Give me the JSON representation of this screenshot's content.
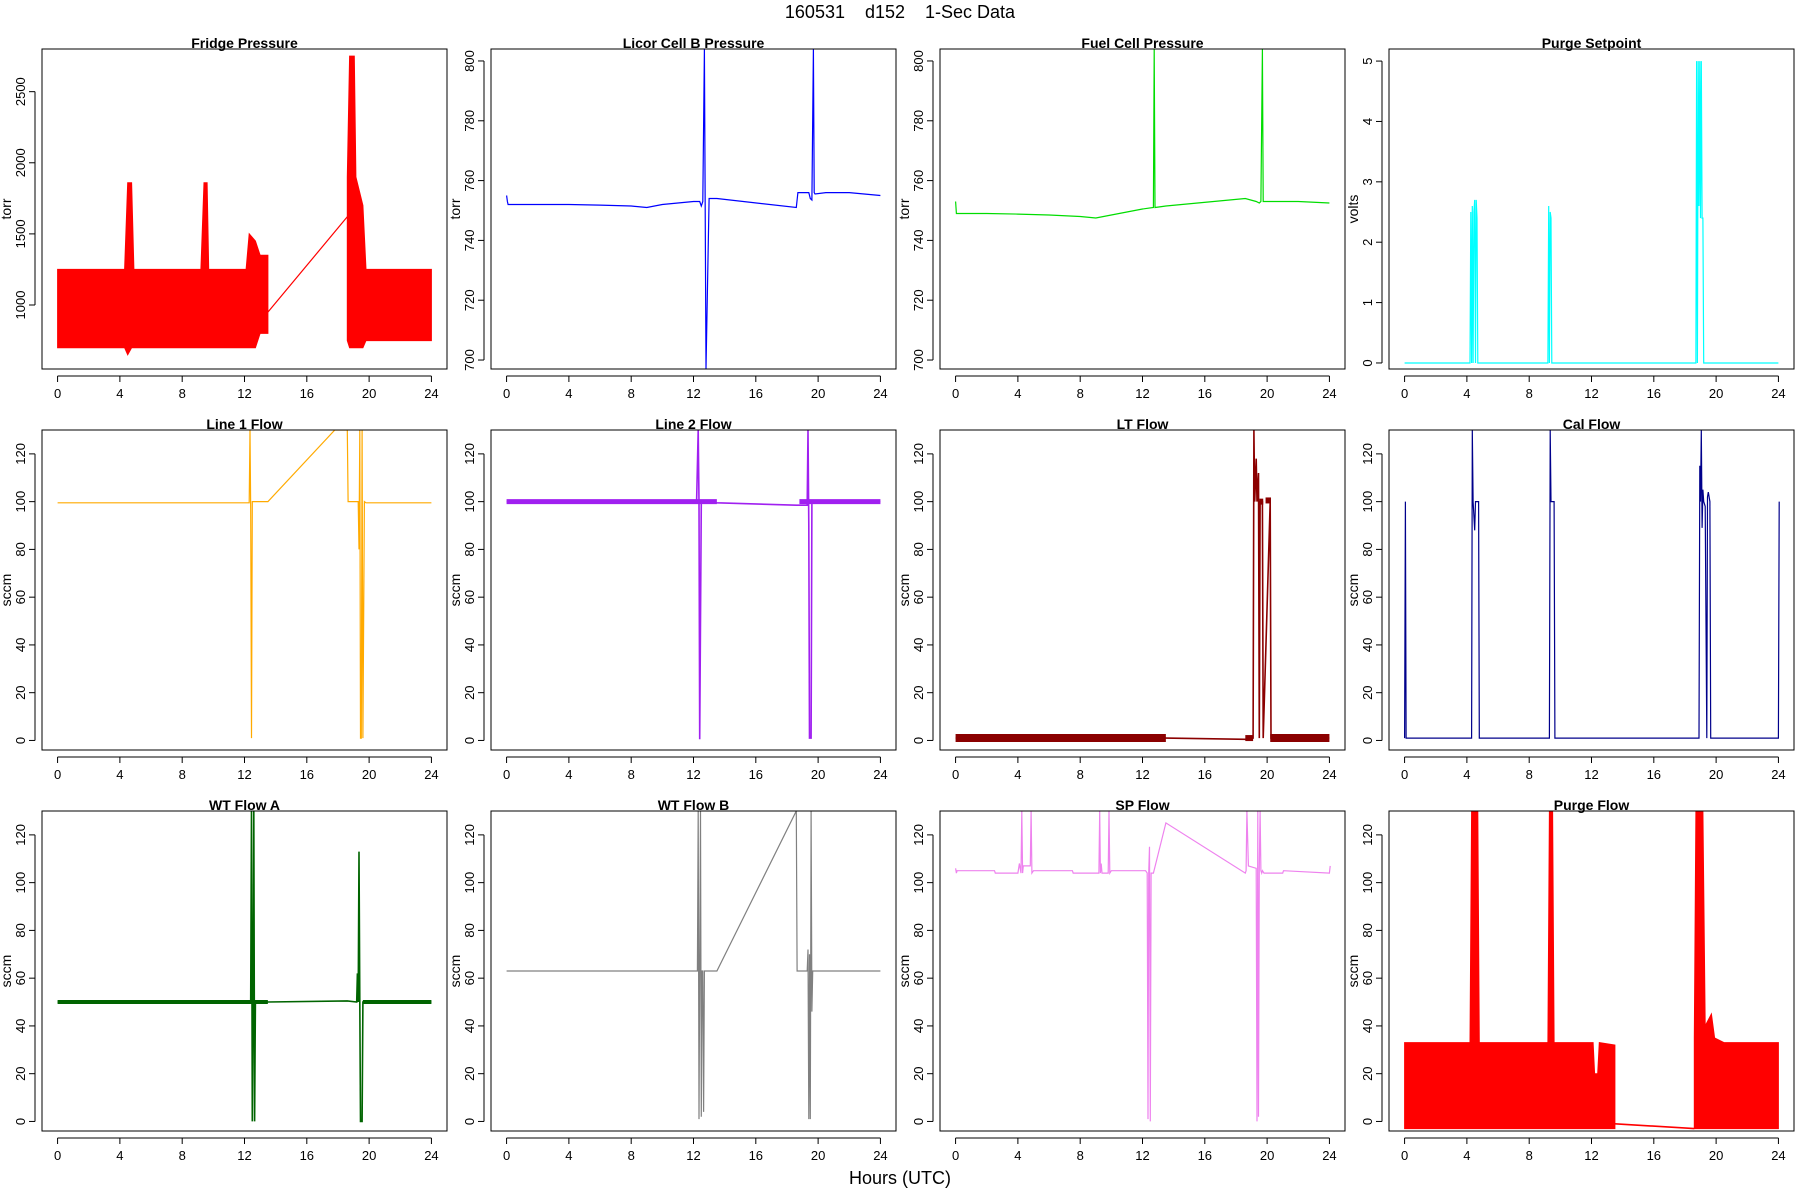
{
  "page": {
    "title": "160531    d152    1-Sec Data",
    "xlabel": "Hours (UTC)"
  },
  "chart_data": [
    {
      "type": "line",
      "title": "Fridge Pressure",
      "ylabel": "torr",
      "color": "#ff0000",
      "xlim": [
        -1,
        25
      ],
      "ylim": [
        550,
        2800
      ],
      "xticks": [
        0,
        4,
        8,
        12,
        16,
        20,
        24
      ],
      "yticks": [
        1000,
        1500,
        2000,
        2500
      ],
      "series": [
        {
          "envelope": [
            [
              0,
              700,
              1250
            ],
            [
              4.3,
              700,
              1250
            ],
            [
              4.5,
              650,
              1860
            ],
            [
              4.75,
              700,
              1860
            ],
            [
              4.9,
              700,
              1250
            ],
            [
              9.2,
              700,
              1250
            ],
            [
              9.4,
              700,
              1860
            ],
            [
              9.6,
              700,
              1860
            ],
            [
              9.7,
              700,
              1250
            ],
            [
              12.1,
              700,
              1250
            ],
            [
              12.3,
              700,
              1500
            ],
            [
              12.7,
              700,
              1450
            ],
            [
              13.0,
              800,
              1350
            ],
            [
              13.5,
              800,
              1350
            ]
          ],
          "x": [
            13.5,
            18.6
          ],
          "y": [
            950,
            1620
          ],
          "envelope2": [
            [
              18.6,
              750,
              1900
            ],
            [
              18.75,
              700,
              2750
            ],
            [
              19.05,
              700,
              2750
            ],
            [
              19.15,
              700,
              1900
            ],
            [
              19.6,
              700,
              1700
            ],
            [
              19.8,
              750,
              1250
            ],
            [
              24,
              750,
              1250
            ]
          ]
        }
      ]
    },
    {
      "type": "line",
      "title": "Licor Cell B Pressure",
      "ylabel": "torr",
      "color": "#0000ff",
      "xlim": [
        -1,
        25
      ],
      "ylim": [
        697,
        804
      ],
      "xticks": [
        0,
        4,
        8,
        12,
        16,
        20,
        24
      ],
      "yticks": [
        700,
        720,
        740,
        760,
        780,
        800
      ],
      "series": [
        {
          "x": [
            0,
            0.05,
            0.1,
            2,
            4,
            6,
            8,
            9,
            10,
            11,
            12,
            12.4,
            12.5,
            12.6,
            12.7,
            12.8,
            13.0,
            13.5,
            18.6,
            18.7,
            19.4,
            19.5,
            19.6,
            19.7,
            19.75,
            19.8,
            20.5,
            22,
            24
          ],
          "y": [
            755,
            753,
            752,
            752,
            752,
            751.8,
            751.5,
            751,
            752,
            752.5,
            753,
            753,
            751.5,
            753,
            804,
            697,
            754,
            754,
            751,
            756,
            756,
            754,
            753.5,
            804,
            756,
            755.5,
            756,
            756,
            755
          ]
        }
      ]
    },
    {
      "type": "line",
      "title": "Fuel Cell Pressure",
      "ylabel": "torr",
      "color": "#00dd00",
      "xlim": [
        -1,
        25
      ],
      "ylim": [
        697,
        804
      ],
      "xticks": [
        0,
        4,
        8,
        12,
        16,
        20,
        24
      ],
      "yticks": [
        700,
        720,
        740,
        760,
        780,
        800
      ],
      "series": [
        {
          "x": [
            0,
            0.05,
            0.1,
            2,
            4,
            6,
            8,
            9,
            10,
            11,
            12,
            12.7,
            12.75,
            12.8,
            13.5,
            18.6,
            19.3,
            19.5,
            19.6,
            19.7,
            19.75,
            20,
            22,
            24
          ],
          "y": [
            753,
            749,
            749,
            749,
            748.8,
            748.5,
            748,
            747.5,
            748.5,
            749.5,
            750.5,
            751,
            804,
            751,
            751.5,
            754,
            753,
            752.5,
            753,
            804,
            753,
            753,
            753,
            752.5
          ]
        }
      ]
    },
    {
      "type": "line",
      "title": "Purge Setpoint",
      "ylabel": "volts",
      "color": "#00ffff",
      "xlim": [
        -1,
        25
      ],
      "ylim": [
        -0.1,
        5.2
      ],
      "xticks": [
        0,
        4,
        8,
        12,
        16,
        20,
        24
      ],
      "yticks": [
        0,
        1,
        2,
        3,
        4,
        5
      ],
      "series": [
        {
          "x": [
            0,
            4.2,
            4.25,
            4.3,
            4.35,
            4.4,
            4.45,
            4.5,
            4.55,
            4.6,
            4.65,
            4.7,
            9.2,
            9.25,
            9.3,
            9.35,
            9.4,
            9.45,
            9.5,
            18.7,
            18.75,
            18.8,
            18.85,
            18.9,
            18.95,
            19.0,
            19.05,
            19.1,
            19.15,
            19.2,
            24
          ],
          "y": [
            0,
            0,
            2.5,
            0,
            2.6,
            0,
            2.5,
            2.7,
            0,
            2.7,
            2.4,
            0,
            0,
            2.6,
            0,
            2.5,
            2.4,
            0,
            0,
            0,
            5.0,
            0,
            5.0,
            2.6,
            5.0,
            2.4,
            5.0,
            2.4,
            2.4,
            0,
            0
          ]
        }
      ]
    },
    {
      "type": "line",
      "title": "Line 1 Flow",
      "ylabel": "sccm",
      "color": "#ffaa00",
      "xlim": [
        -1,
        25
      ],
      "ylim": [
        -4,
        130
      ],
      "xticks": [
        0,
        4,
        8,
        12,
        16,
        20,
        24
      ],
      "yticks": [
        0,
        20,
        40,
        60,
        80,
        100,
        120
      ],
      "series": [
        {
          "x": [
            0,
            12.3,
            12.35,
            12.4,
            12.45,
            12.5,
            12.6,
            13.5,
            17.8,
            18.6,
            18.65,
            19.3,
            19.35,
            19.4,
            19.45,
            19.5,
            19.55,
            19.6,
            19.7,
            19.8,
            24
          ],
          "y": [
            99.5,
            99.5,
            130,
            96,
            1,
            100,
            100,
            100,
            130,
            130,
            100,
            100,
            80,
            130,
            1,
            1,
            130,
            1,
            100,
            99.5,
            99.5
          ]
        }
      ]
    },
    {
      "type": "line",
      "title": "Line 2 Flow",
      "ylabel": "sccm",
      "color": "#a020f0",
      "xlim": [
        -1,
        25
      ],
      "ylim": [
        -4,
        130
      ],
      "xticks": [
        0,
        4,
        8,
        12,
        16,
        20,
        24
      ],
      "yticks": [
        0,
        20,
        40,
        60,
        80,
        100,
        120
      ],
      "series": [
        {
          "x": [
            0,
            12.2,
            12.3,
            12.35,
            12.4,
            12.5,
            13.5,
            18.6,
            19.3,
            19.35,
            19.4,
            19.45,
            19.55,
            19.6,
            19.7,
            24
          ],
          "y": [
            100,
            100,
            130,
            100,
            0.5,
            100,
            99.5,
            98.5,
            98.5,
            130,
            90,
            1,
            1,
            100,
            100,
            100
          ]
        }
      ]
    },
    {
      "type": "line",
      "title": "LT Flow",
      "ylabel": "sccm",
      "color": "#8b0000",
      "xlim": [
        -1,
        25
      ],
      "ylim": [
        -4,
        130
      ],
      "xticks": [
        0,
        4,
        8,
        12,
        16,
        20,
        24
      ],
      "yticks": [
        0,
        20,
        40,
        60,
        80,
        100,
        120
      ],
      "series": [
        {
          "x": [
            0,
            13.5,
            18.6,
            19.1,
            19.15,
            19.2,
            19.3,
            19.35,
            19.45,
            19.5,
            19.55,
            19.7,
            19.75,
            20.2,
            20.25,
            24
          ],
          "y": [
            1,
            1,
            0.5,
            1,
            130,
            100,
            118,
            100,
            112,
            1,
            100,
            100,
            1,
            100,
            1,
            1
          ]
        }
      ]
    },
    {
      "type": "line",
      "title": "Cal Flow",
      "ylabel": "sccm",
      "color": "#00008b",
      "xlim": [
        -1,
        25
      ],
      "ylim": [
        -4,
        130
      ],
      "xticks": [
        0,
        4,
        8,
        12,
        16,
        20,
        24
      ],
      "yticks": [
        0,
        20,
        40,
        60,
        80,
        100,
        120
      ],
      "series": [
        {
          "x": [
            0,
            0.05,
            0.1,
            4.3,
            4.35,
            4.4,
            4.5,
            4.55,
            4.75,
            4.8,
            9.3,
            9.35,
            9.4,
            9.6,
            9.65,
            18.9,
            18.95,
            19.0,
            19.05,
            19.1,
            19.15,
            19.2,
            19.3,
            19.4,
            19.45,
            19.5,
            19.6,
            19.65,
            19.7,
            19.75,
            24,
            24.05
          ],
          "y": [
            1,
            100,
            1,
            1,
            130,
            100,
            88,
            100,
            100,
            1,
            1,
            130,
            100,
            100,
            1,
            1,
            115,
            100,
            130,
            89,
            105,
            100,
            98,
            1,
            102,
            104,
            100,
            1,
            1,
            1,
            1,
            100
          ]
        }
      ]
    },
    {
      "type": "line",
      "title": "WT Flow A",
      "ylabel": "sccm",
      "color": "#006400",
      "xlim": [
        -1,
        25
      ],
      "ylim": [
        -4,
        130
      ],
      "xticks": [
        0,
        4,
        8,
        12,
        16,
        20,
        24
      ],
      "yticks": [
        0,
        20,
        40,
        60,
        80,
        100,
        120
      ],
      "series": [
        {
          "x": [
            0,
            12.3,
            12.4,
            12.45,
            12.5,
            12.55,
            12.6,
            12.65,
            12.7,
            12.75,
            13.5,
            18.6,
            19.2,
            19.25,
            19.3,
            19.35,
            19.4,
            19.45,
            19.55,
            19.6,
            19.65,
            24
          ],
          "y": [
            50,
            50,
            50,
            130,
            0,
            50,
            130,
            0,
            50,
            50,
            50,
            50.5,
            50,
            62,
            50,
            113,
            50,
            0,
            0,
            50,
            50,
            50
          ]
        }
      ]
    },
    {
      "type": "line",
      "title": "WT Flow B",
      "ylabel": "sccm",
      "color": "#808080",
      "xlim": [
        -1,
        25
      ],
      "ylim": [
        -4,
        130
      ],
      "xticks": [
        0,
        4,
        8,
        12,
        16,
        20,
        24
      ],
      "yticks": [
        0,
        20,
        40,
        60,
        80,
        100,
        120
      ],
      "series": [
        {
          "x": [
            0,
            12.2,
            12.25,
            12.3,
            12.35,
            12.4,
            12.45,
            12.5,
            12.55,
            12.6,
            12.65,
            12.7,
            13.5,
            18.6,
            18.65,
            19.3,
            19.35,
            19.4,
            19.45,
            19.5,
            19.55,
            19.6,
            19.65,
            19.7,
            20,
            24
          ],
          "y": [
            63,
            63,
            63,
            130,
            1,
            63,
            130,
            2,
            63,
            63,
            4,
            63,
            63,
            130,
            63,
            63,
            72,
            1,
            70,
            1,
            130,
            46,
            63,
            63,
            63,
            63
          ]
        }
      ]
    },
    {
      "type": "line",
      "title": "SP Flow",
      "ylabel": "sccm",
      "color": "#ee82ee",
      "xlim": [
        -1,
        25
      ],
      "ylim": [
        -4,
        130
      ],
      "xticks": [
        0,
        4,
        8,
        12,
        16,
        20,
        24
      ],
      "yticks": [
        0,
        20,
        40,
        60,
        80,
        100,
        120
      ],
      "series": [
        {
          "x": [
            0,
            0.05,
            0.1,
            2.5,
            2.55,
            3.5,
            4.0,
            4.1,
            4.2,
            4.25,
            4.3,
            4.35,
            4.8,
            4.85,
            4.9,
            5.0,
            7.5,
            7.55,
            9.2,
            9.25,
            9.3,
            9.35,
            9.4,
            9.8,
            9.85,
            9.9,
            10.0,
            12.2,
            12.3,
            12.35,
            12.4,
            12.45,
            12.5,
            12.55,
            12.6,
            12.7,
            13.5,
            18.6,
            18.65,
            18.7,
            18.8,
            19.3,
            19.35,
            19.4,
            19.45,
            19.5,
            19.55,
            19.6,
            19.65,
            19.7,
            19.8,
            21,
            21.05,
            24,
            24.05
          ],
          "y": [
            106,
            104,
            105,
            105,
            104,
            104,
            104,
            108,
            104,
            130,
            104,
            107,
            107,
            130,
            104,
            105,
            105,
            104,
            104,
            130,
            104,
            108,
            104,
            104,
            130,
            104,
            105,
            105,
            104,
            1,
            104,
            115,
            0,
            104,
            104,
            104,
            125,
            104,
            105,
            130,
            107,
            106,
            0,
            130,
            2,
            106,
            130,
            105,
            104,
            105,
            104,
            104,
            105,
            104,
            107
          ]
        }
      ]
    },
    {
      "type": "line",
      "title": "Purge Flow",
      "ylabel": "sccm",
      "color": "#ff0000",
      "xlim": [
        -1,
        25
      ],
      "ylim": [
        -4,
        130
      ],
      "xticks": [
        0,
        4,
        8,
        12,
        16,
        20,
        24
      ],
      "yticks": [
        0,
        20,
        40,
        60,
        80,
        100,
        120
      ],
      "series": [
        {
          "envelope": [
            [
              0,
              -3,
              33
            ],
            [
              4.2,
              -3,
              33
            ],
            [
              4.3,
              -3,
              130
            ],
            [
              4.7,
              -3,
              130
            ],
            [
              4.8,
              -3,
              33
            ],
            [
              9.2,
              -3,
              33
            ],
            [
              9.3,
              -3,
              130
            ],
            [
              9.5,
              -3,
              130
            ],
            [
              9.6,
              -3,
              33
            ],
            [
              12.1,
              -3,
              33
            ],
            [
              12.2,
              -3,
              20
            ],
            [
              12.4,
              -3,
              20
            ],
            [
              12.5,
              -3,
              33
            ],
            [
              13.5,
              -3,
              32
            ]
          ],
          "x": [
            13.5,
            18.6
          ],
          "y": [
            -1,
            -3
          ],
          "envelope2": [
            [
              18.6,
              -3,
              35
            ],
            [
              18.7,
              -3,
              130
            ],
            [
              19.15,
              -3,
              130
            ],
            [
              19.3,
              -3,
              40
            ],
            [
              19.7,
              -3,
              45
            ],
            [
              19.9,
              -3,
              35
            ],
            [
              20.5,
              -3,
              33
            ],
            [
              24,
              -3,
              33
            ]
          ]
        }
      ]
    }
  ]
}
